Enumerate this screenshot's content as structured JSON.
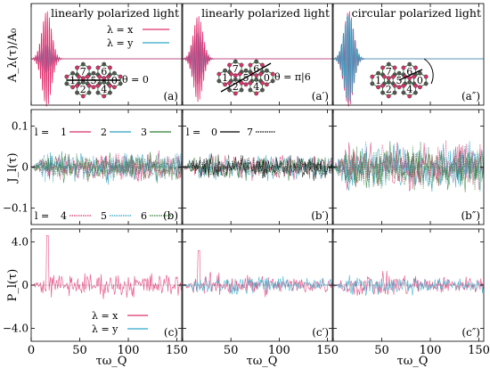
{
  "chart_data": {
    "type": "line",
    "columns": [
      {
        "title": "linearly polarized light",
        "angle_label": "θ = 0",
        "top_tag": "(a)",
        "mid_tag": "(b)",
        "bot_tag": "(c)"
      },
      {
        "title": "linearly polarized light",
        "angle_label": "θ = π|6",
        "top_tag": "(a′)",
        "mid_tag": "(b′)",
        "bot_tag": "(c′)"
      },
      {
        "title": "circular polarized light",
        "angle_label": "",
        "top_tag": "(a″)",
        "mid_tag": "(b″)",
        "bot_tag": "(c″)"
      }
    ],
    "rows": [
      {
        "ylabel": "A_λ(τ)/A₀",
        "yticks": []
      },
      {
        "ylabel": "J_l(τ)",
        "yticks": [
          "0.1",
          "0",
          "−0.1"
        ],
        "yvalues": [
          0.1,
          0,
          -0.1
        ],
        "ylim": [
          -0.14,
          0.14
        ]
      },
      {
        "ylabel": "P_l(τ)",
        "yticks": [
          "4.0",
          "0",
          "−4.0"
        ],
        "yvalues": [
          4.0,
          0,
          -4.0
        ],
        "ylim": [
          -5.2,
          5.2
        ]
      }
    ],
    "xlabel": "τω_Q",
    "xticks": [
      "0",
      "50",
      "100",
      "150"
    ],
    "xvalues": [
      0,
      50,
      100,
      150
    ],
    "xlim": [
      0,
      155
    ],
    "legend_lambda": {
      "x": "λ = x",
      "y": "λ = y"
    },
    "legend_l_top": {
      "prefix": "l =",
      "items": [
        "1",
        "2",
        "3"
      ]
    },
    "legend_l_bottom": {
      "prefix": "l =",
      "items": [
        "4",
        "5",
        "6"
      ]
    },
    "legend_l_mid": {
      "prefix": "l =",
      "items": [
        "0",
        "7"
      ]
    },
    "lattice_labels": [
      "7",
      "6",
      "1",
      "5",
      "0",
      "2",
      "4",
      "3"
    ],
    "colors": {
      "x": "#e0306f",
      "y": "#2fa9c9",
      "l1": "#d6336c",
      "l2": "#2a9fc1",
      "l3": "#2e7d32",
      "l0": "#000000",
      "l4": "#d6336c",
      "l5": "#2a9fc1",
      "l6": "#2e7d32",
      "l7": "#000000"
    }
  }
}
